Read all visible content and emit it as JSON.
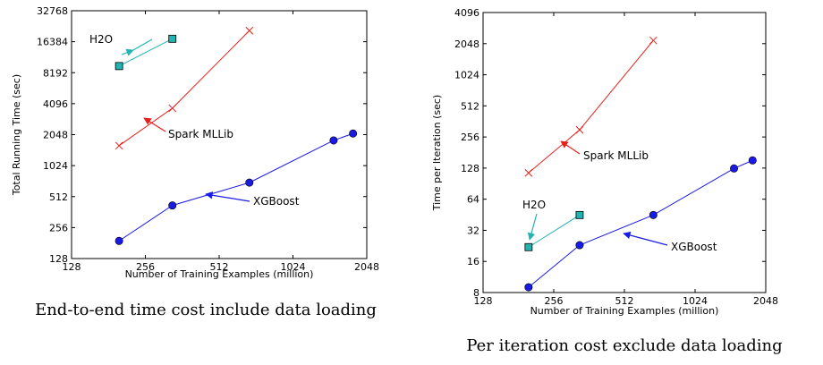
{
  "chart_data": [
    {
      "type": "line",
      "xscale": "log2",
      "yscale": "log2",
      "xlabel": "Number of Training Examples (million)",
      "ylabel": "Total Running Time (sec)",
      "xlim": [
        128,
        2048
      ],
      "ylim": [
        128,
        32768
      ],
      "xticks": [
        "128",
        "256",
        "512",
        "1024",
        "2048"
      ],
      "yticks": [
        "128",
        "256",
        "512",
        "1024",
        "2048",
        "4096",
        "8192",
        "16384",
        "32768"
      ],
      "caption": "End-to-end time cost include data loading",
      "series": [
        {
          "name": "H2O",
          "color": "#22b3b3",
          "marker": "square",
          "points": [
            [
              200,
              9500
            ],
            [
              330,
              17500
            ]
          ]
        },
        {
          "name": "Spark MLLib",
          "color": "#e8201c",
          "marker": "x",
          "points": [
            [
              200,
              1600
            ],
            [
              330,
              3700
            ],
            [
              680,
              21000
            ]
          ]
        },
        {
          "name": "XGBoost",
          "color": "#1a1ae6",
          "marker": "circle",
          "points": [
            [
              200,
              190
            ],
            [
              330,
              420
            ],
            [
              680,
              700
            ],
            [
              1500,
              1800
            ],
            [
              1800,
              2100
            ]
          ]
        }
      ]
    },
    {
      "type": "line",
      "xscale": "log2",
      "yscale": "log2",
      "xlabel": "Number of Training Examples (million)",
      "ylabel": "Time per Iteration (sec)",
      "xlim": [
        128,
        2048
      ],
      "ylim": [
        8,
        4096
      ],
      "xticks": [
        "128",
        "256",
        "512",
        "1024",
        "2048"
      ],
      "yticks": [
        "8",
        "16",
        "32",
        "64",
        "128",
        "256",
        "512",
        "1024",
        "2048",
        "4096"
      ],
      "caption": "Per iteration cost exclude data loading",
      "series": [
        {
          "name": "H2O",
          "color": "#22b3b3",
          "marker": "square",
          "points": [
            [
              200,
              22
            ],
            [
              330,
              45
            ]
          ]
        },
        {
          "name": "Spark MLLib",
          "color": "#e8201c",
          "marker": "x",
          "points": [
            [
              200,
              115
            ],
            [
              330,
              300
            ],
            [
              680,
              2200
            ]
          ]
        },
        {
          "name": "XGBoost",
          "color": "#1a1ae6",
          "marker": "circle",
          "points": [
            [
              200,
              9
            ],
            [
              330,
              23
            ],
            [
              680,
              45
            ],
            [
              1500,
              127
            ],
            [
              1800,
              152
            ]
          ]
        }
      ]
    }
  ]
}
